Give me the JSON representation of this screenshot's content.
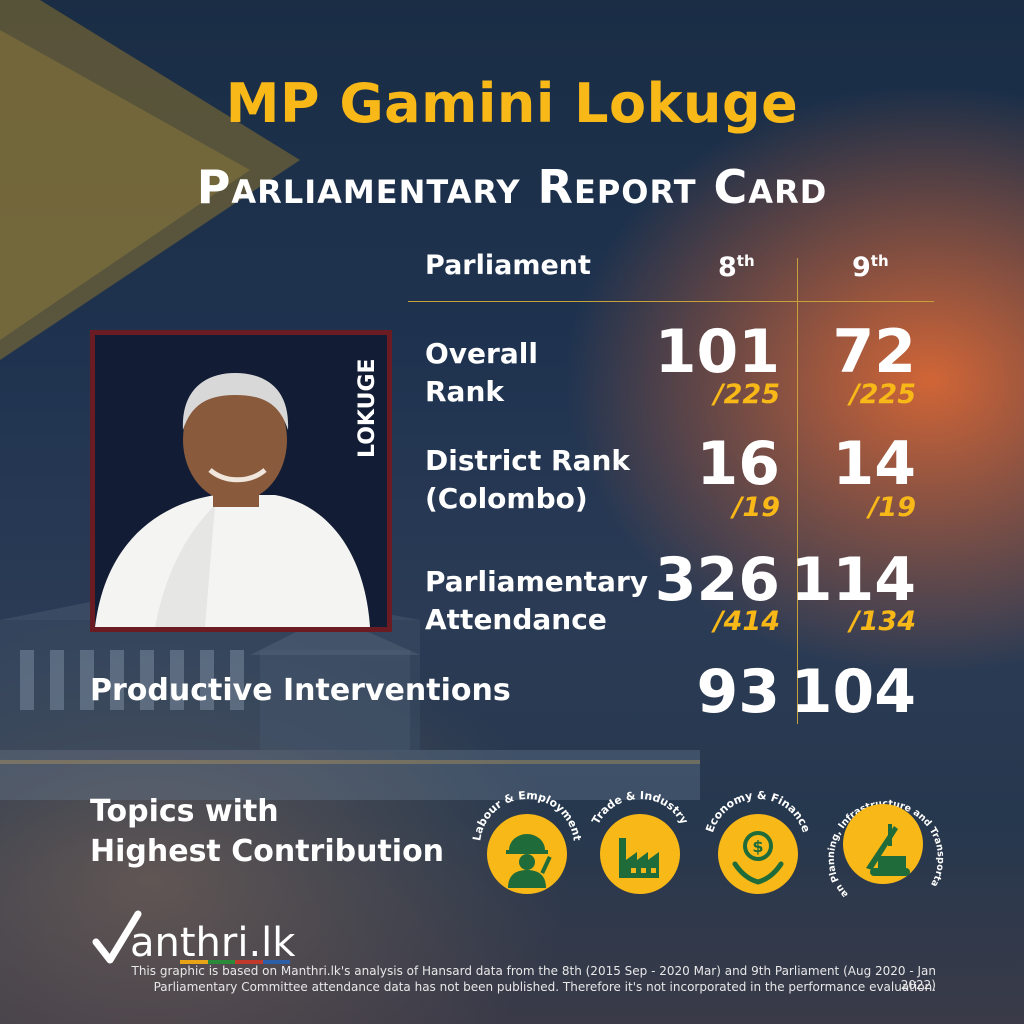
{
  "header": {
    "name": "MP Gamini Lokuge",
    "subtitle": "Parliamentary Report Card"
  },
  "columns": {
    "label": "Parliament",
    "p8": "8",
    "p9": "9",
    "suffix": "th"
  },
  "photo_label": "LOKUGE",
  "metrics": {
    "overall": {
      "label1": "Overall",
      "label2": "Rank",
      "p8": "101",
      "p8_total": "/225",
      "p9": "72",
      "p9_total": "/225"
    },
    "district": {
      "label1": "District Rank",
      "label2": "(Colombo)",
      "p8": "16",
      "p8_total": "/19",
      "p9": "14",
      "p9_total": "/19"
    },
    "attendance": {
      "label1": "Parliamentary",
      "label2": "Attendance",
      "p8": "326",
      "p8_total": "/414",
      "p9": "114",
      "p9_total": "/134"
    },
    "interventions": {
      "label": "Productive Interventions",
      "p8": "93",
      "p9": "104"
    }
  },
  "topics": {
    "label1": "Topics with",
    "label2": "Highest Contribution",
    "items": [
      {
        "name": "Labour & Employment",
        "icon": "worker-icon"
      },
      {
        "name": "Trade & Industry",
        "icon": "factory-icon"
      },
      {
        "name": "Economy & Finance",
        "icon": "money-hands-icon"
      },
      {
        "name": "Urban Planning, Infrastructure and Transportation",
        "icon": "crane-icon"
      }
    ]
  },
  "brand": {
    "logo": "anthri.lk"
  },
  "footer": {
    "line1": "This graphic is based on Manthri.lk's analysis of Hansard data from the 8th (2015 Sep - 2020 Mar) and 9th Parliament (Aug 2020 - Jan 2022)",
    "line2": "Parliamentary Committee attendance data has not been published. Therefore it's not incorporated in the performance evaluation."
  },
  "colors": {
    "accent": "#f7b818",
    "frame": "#6a1c22",
    "text": "#ffffff"
  }
}
